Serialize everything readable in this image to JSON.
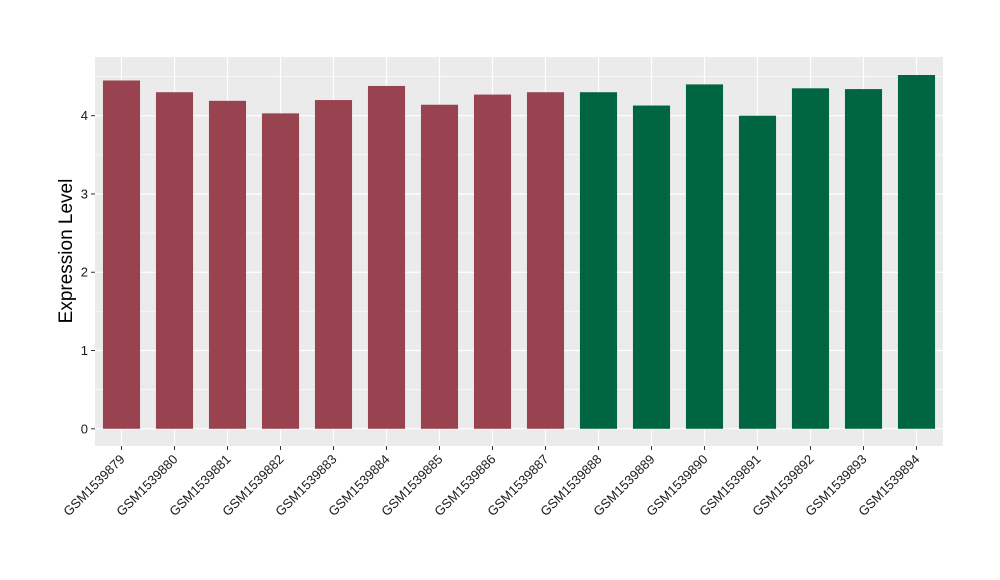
{
  "chart_data": {
    "type": "bar",
    "ylabel": "Expression Level",
    "xlabel": "",
    "ylim": [
      -0.22,
      4.75
    ],
    "yticks": [
      0,
      1,
      2,
      3,
      4
    ],
    "grid": true,
    "colors": {
      "group_a": "#9a4350",
      "group_b": "#006642",
      "panel": "#ebebeb",
      "grid": "#ffffff"
    },
    "categories": [
      "GSM1539879",
      "GSM1539880",
      "GSM1539881",
      "GSM1539882",
      "GSM1539883",
      "GSM1539884",
      "GSM1539885",
      "GSM1539886",
      "GSM1539887",
      "GSM1539888",
      "GSM1539889",
      "GSM1539890",
      "GSM1539891",
      "GSM1539892",
      "GSM1539893",
      "GSM1539894"
    ],
    "values": [
      4.45,
      4.3,
      4.19,
      4.03,
      4.2,
      4.38,
      4.14,
      4.27,
      4.3,
      4.3,
      4.13,
      4.4,
      4.0,
      4.35,
      4.34,
      4.52
    ],
    "bar_groups": [
      "a",
      "a",
      "a",
      "a",
      "a",
      "a",
      "a",
      "a",
      "a",
      "b",
      "b",
      "b",
      "b",
      "b",
      "b",
      "b"
    ]
  }
}
